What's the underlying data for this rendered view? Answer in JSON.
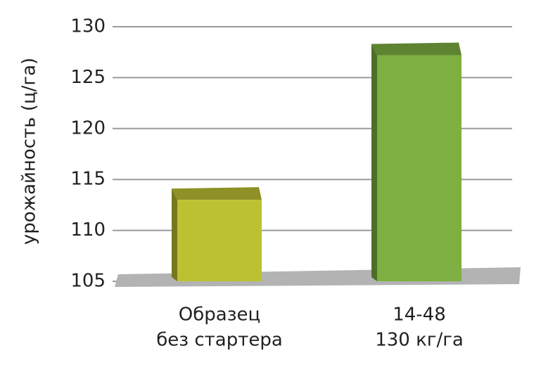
{
  "chart_data": {
    "type": "bar3d",
    "y_label": "урожайность (ц/га)",
    "categories": [
      [
        "Образец",
        "без стартера"
      ],
      [
        "14-48",
        "130 кг/га"
      ]
    ],
    "values": [
      113,
      127.2
    ],
    "colors": [
      "#bcc132",
      "#7db041"
    ],
    "ylim": [
      105,
      130
    ],
    "yticks": [
      105,
      110,
      115,
      120,
      125,
      130
    ],
    "grid": true
  }
}
